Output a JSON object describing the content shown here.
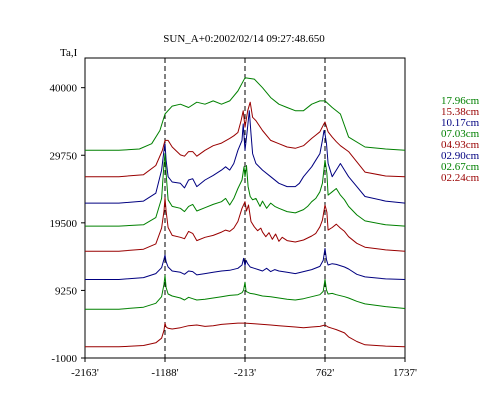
{
  "chart_data": {
    "type": "line",
    "title": "SUN_A+0:2002/02/14 09:27:48.650",
    "ylabel": "Ta,I",
    "xlim": [
      -2163,
      1737
    ],
    "ylim": [
      -1000,
      44500
    ],
    "x_ticks": [
      -2163,
      -1188,
      -213,
      762,
      1737
    ],
    "x_tick_labels": [
      "-2163'",
      "-1188'",
      "-213'",
      "762'",
      "1737'"
    ],
    "y_ticks": [
      40000,
      29750,
      19500,
      9250,
      -1000
    ],
    "y_tick_labels": [
      "40000",
      "29750",
      "19500",
      "9250",
      "-1000"
    ],
    "grid": false,
    "vertical_markers": [
      -1188,
      -213,
      762
    ],
    "legend_position": "right",
    "series": [
      {
        "name": "17.96cm",
        "color": "#008000",
        "x": [
          -2163,
          -1750,
          -1500,
          -1350,
          -1250,
          -1188,
          -1100,
          -1000,
          -900,
          -800,
          -700,
          -600,
          -500,
          -400,
          -300,
          -213,
          -100,
          0,
          100,
          200,
          300,
          400,
          500,
          600,
          700,
          762,
          850,
          950,
          1050,
          1250,
          1500,
          1737
        ],
        "y": [
          30500,
          30500,
          30700,
          31500,
          33500,
          36000,
          37200,
          37500,
          37000,
          37800,
          37500,
          38000,
          37500,
          38000,
          39500,
          41500,
          41300,
          40000,
          38500,
          37500,
          37000,
          36500,
          36500,
          37500,
          38000,
          38000,
          37000,
          36000,
          32500,
          31000,
          30700,
          30500
        ]
      },
      {
        "name": "15.38cm",
        "color": "#990000",
        "x": [
          -2163,
          -1750,
          -1450,
          -1300,
          -1220,
          -1188,
          -1150,
          -1100,
          -1000,
          -950,
          -900,
          -850,
          -800,
          -700,
          -600,
          -500,
          -400,
          -350,
          -300,
          -260,
          -235,
          -213,
          -180,
          -150,
          -120,
          -80,
          0,
          100,
          200,
          300,
          400,
          500,
          600,
          650,
          700,
          740,
          762,
          800,
          850,
          900,
          950,
          1050,
          1250,
          1500,
          1737
        ],
        "y": [
          26500,
          26500,
          26800,
          28200,
          30500,
          32000,
          32000,
          31000,
          29800,
          29600,
          30300,
          30300,
          29600,
          30500,
          31200,
          31600,
          32300,
          32700,
          33200,
          35000,
          36500,
          34000,
          36500,
          37800,
          35500,
          35000,
          33500,
          32000,
          31500,
          31000,
          30800,
          31200,
          32300,
          32800,
          33300,
          34300,
          34800,
          33300,
          32500,
          31800,
          31200,
          30300,
          27200,
          26600,
          26500
        ]
      },
      {
        "name": "10.17cm",
        "color": "#000080",
        "x": [
          -2163,
          -1750,
          -1450,
          -1300,
          -1230,
          -1200,
          -1188,
          -1175,
          -1150,
          -1100,
          -1000,
          -950,
          -900,
          -850,
          -800,
          -700,
          -600,
          -500,
          -450,
          -400,
          -350,
          -300,
          -250,
          -235,
          -213,
          -190,
          -160,
          -140,
          -120,
          -80,
          0,
          100,
          200,
          300,
          400,
          450,
          500,
          600,
          650,
          700,
          730,
          750,
          762,
          780,
          800,
          850,
          900,
          950,
          1000,
          1050,
          1150,
          1250,
          1500,
          1737
        ],
        "y": [
          22500,
          22500,
          22800,
          24000,
          27500,
          30500,
          31500,
          29000,
          26500,
          25700,
          25500,
          24800,
          26000,
          26200,
          25000,
          26000,
          26700,
          27500,
          28000,
          27500,
          28500,
          30500,
          32000,
          34500,
          30500,
          33000,
          36500,
          33000,
          30000,
          28500,
          27500,
          26500,
          25500,
          25000,
          25000,
          25500,
          26500,
          28000,
          29000,
          30000,
          32000,
          33500,
          33000,
          31500,
          28500,
          26500,
          27500,
          28500,
          27500,
          26500,
          25000,
          23500,
          22800,
          22500
        ]
      },
      {
        "name": "07.03cm",
        "color": "#008000",
        "x": [
          -2163,
          -1750,
          -1450,
          -1300,
          -1230,
          -1200,
          -1188,
          -1175,
          -1150,
          -1100,
          -1000,
          -950,
          -900,
          -850,
          -800,
          -700,
          -600,
          -500,
          -450,
          -400,
          -350,
          -300,
          -250,
          -225,
          -213,
          -195,
          -175,
          -150,
          -120,
          -80,
          -30,
          0,
          50,
          100,
          150,
          200,
          300,
          400,
          500,
          550,
          600,
          650,
          700,
          730,
          762,
          785,
          800,
          850,
          900,
          950,
          1000,
          1050,
          1150,
          1250,
          1500,
          1737
        ],
        "y": [
          19000,
          19000,
          19200,
          20300,
          23200,
          28500,
          30000,
          27000,
          23000,
          22000,
          21700,
          21200,
          22000,
          22300,
          21300,
          21800,
          22300,
          22700,
          23200,
          22200,
          23200,
          24700,
          26000,
          28000,
          26500,
          28200,
          25000,
          23500,
          23000,
          23200,
          22000,
          22800,
          21700,
          22500,
          22000,
          21700,
          21200,
          21000,
          21500,
          22000,
          22700,
          23200,
          24200,
          25500,
          29000,
          27000,
          23700,
          24200,
          24700,
          23700,
          23000,
          22000,
          20700,
          19800,
          19200,
          19000
        ]
      },
      {
        "name": "04.93cm",
        "color": "#990000",
        "x": [
          -2163,
          -1750,
          -1450,
          -1300,
          -1230,
          -1200,
          -1188,
          -1175,
          -1150,
          -1100,
          -1000,
          -950,
          -900,
          -850,
          -800,
          -700,
          -600,
          -500,
          -450,
          -400,
          -350,
          -300,
          -250,
          -213,
          -195,
          -170,
          -140,
          -100,
          -60,
          -20,
          0,
          40,
          80,
          120,
          160,
          200,
          240,
          300,
          400,
          500,
          550,
          600,
          650,
          700,
          730,
          762,
          785,
          800,
          850,
          900,
          950,
          1000,
          1050,
          1150,
          1250,
          1500,
          1737
        ],
        "y": [
          15200,
          15200,
          15500,
          16300,
          18700,
          21300,
          23300,
          21300,
          18800,
          17600,
          17300,
          17100,
          18200,
          17900,
          16800,
          17300,
          17600,
          18100,
          18400,
          18200,
          18700,
          19700,
          21700,
          22700,
          21300,
          22200,
          19700,
          18900,
          18300,
          18700,
          18100,
          17400,
          18000,
          17000,
          17800,
          16700,
          17300,
          16800,
          16600,
          16900,
          17200,
          17500,
          17900,
          18900,
          19900,
          22200,
          21100,
          18400,
          18800,
          19300,
          18700,
          18200,
          17400,
          16400,
          15800,
          15400,
          15200
        ]
      },
      {
        "name": "02.90cm",
        "color": "#000080",
        "x": [
          -2163,
          -1750,
          -1450,
          -1300,
          -1230,
          -1200,
          -1188,
          -1175,
          -1150,
          -1100,
          -1000,
          -950,
          -900,
          -850,
          -800,
          -700,
          -600,
          -500,
          -400,
          -300,
          -250,
          -230,
          -213,
          -200,
          -180,
          -150,
          -100,
          -50,
          0,
          50,
          100,
          150,
          200,
          300,
          400,
          500,
          600,
          700,
          740,
          762,
          780,
          800,
          850,
          900,
          1000,
          1050,
          1150,
          1250,
          1500,
          1737
        ],
        "y": [
          10900,
          10900,
          11200,
          11800,
          12700,
          14000,
          14600,
          13600,
          12800,
          12200,
          12000,
          11700,
          12200,
          12100,
          11600,
          11800,
          12000,
          12200,
          12300,
          12600,
          13100,
          14100,
          13000,
          13800,
          13300,
          12800,
          12600,
          12400,
          12200,
          12600,
          12100,
          12400,
          12200,
          12000,
          11800,
          12100,
          12400,
          12900,
          13800,
          15600,
          13900,
          13100,
          13300,
          13200,
          12800,
          12500,
          11700,
          11300,
          11000,
          10900
        ]
      },
      {
        "name": "02.67cm",
        "color": "#008000",
        "x": [
          -2163,
          -1750,
          -1450,
          -1300,
          -1230,
          -1200,
          -1188,
          -1175,
          -1150,
          -1100,
          -1000,
          -950,
          -900,
          -850,
          -800,
          -700,
          -600,
          -500,
          -400,
          -300,
          -250,
          -230,
          -213,
          -200,
          -150,
          -100,
          0,
          100,
          200,
          300,
          400,
          500,
          600,
          700,
          740,
          762,
          780,
          800,
          850,
          900,
          1000,
          1050,
          1150,
          1250,
          1500,
          1737
        ],
        "y": [
          6400,
          6400,
          6700,
          7300,
          8300,
          10200,
          11500,
          9700,
          8700,
          8400,
          8100,
          7800,
          8200,
          8000,
          7800,
          7900,
          8100,
          8300,
          8500,
          8600,
          8900,
          9300,
          10500,
          9100,
          8800,
          8700,
          8400,
          8300,
          8100,
          7900,
          7800,
          8000,
          8300,
          8600,
          9100,
          10900,
          9300,
          8700,
          8800,
          8600,
          8300,
          8100,
          7600,
          7200,
          6800,
          6500
        ]
      },
      {
        "name": "02.24cm",
        "color": "#990000",
        "x": [
          -2163,
          -1750,
          -1450,
          -1300,
          -1230,
          -1200,
          -1188,
          -1175,
          -1150,
          -1100,
          -1000,
          -900,
          -800,
          -700,
          -600,
          -500,
          -400,
          -300,
          -213,
          -100,
          0,
          100,
          200,
          300,
          400,
          500,
          600,
          700,
          762,
          800,
          850,
          900,
          1000,
          1050,
          1150,
          1250,
          1500,
          1737
        ],
        "y": [
          700,
          700,
          900,
          1300,
          2000,
          3200,
          4300,
          3700,
          3500,
          3400,
          3600,
          3900,
          4000,
          3800,
          3900,
          4100,
          4200,
          4300,
          4300,
          4200,
          4100,
          4000,
          3900,
          3800,
          3700,
          3600,
          3700,
          3800,
          4000,
          3700,
          3500,
          3300,
          2800,
          2200,
          1500,
          1000,
          800,
          700
        ]
      }
    ]
  }
}
